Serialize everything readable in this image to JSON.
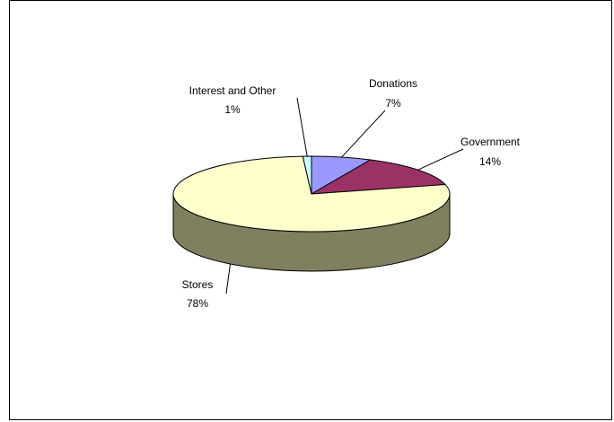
{
  "chart_data": {
    "type": "pie",
    "three_d": true,
    "legend": "none",
    "slices": [
      {
        "label": "Donations",
        "pct_label": "7%",
        "value": 7,
        "color": "#9999ff",
        "side_color": "#6b6bb3"
      },
      {
        "label": "Government",
        "pct_label": "14%",
        "value": 14,
        "color": "#993366",
        "side_color": "#6b2447"
      },
      {
        "label": "Stores",
        "pct_label": "78%",
        "value": 78,
        "color": "#ffffcc",
        "side_color": "#808060"
      },
      {
        "label": "Interest and Other",
        "pct_label": "1%",
        "value": 1,
        "color": "#ccffff",
        "side_color": "#8fb3b3"
      }
    ]
  }
}
